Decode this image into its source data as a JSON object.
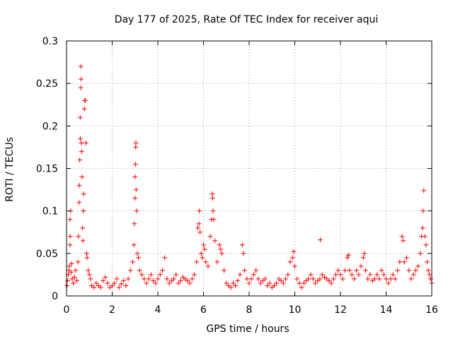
{
  "chart_data": {
    "type": "scatter",
    "title": "Day 177 of 2025, Rate Of TEC Index for receiver aqui",
    "xlabel": "GPS time / hours",
    "ylabel": "ROTI / TECUs",
    "xlim": [
      0,
      16
    ],
    "ylim": [
      0,
      0.3
    ],
    "xticks": [
      0,
      2,
      4,
      6,
      8,
      10,
      12,
      14,
      16
    ],
    "yticks": [
      0,
      0.05,
      0.1,
      0.15,
      0.2,
      0.25,
      0.3
    ],
    "xtick_labels": [
      "0",
      "2",
      "4",
      "6",
      "8",
      "10",
      "12",
      "14",
      "16"
    ],
    "ytick_labels": [
      "0",
      "0.05",
      "0.1",
      "0.15",
      "0.2",
      "0.25",
      "0.3"
    ],
    "grid": true,
    "marker": "plus",
    "color": "#ff0000",
    "series": [
      {
        "name": "ROTI",
        "points": [
          [
            0.02,
            0.012
          ],
          [
            0.05,
            0.018
          ],
          [
            0.08,
            0.025
          ],
          [
            0.1,
            0.03
          ],
          [
            0.12,
            0.035
          ],
          [
            0.15,
            0.06
          ],
          [
            0.15,
            0.09
          ],
          [
            0.16,
            0.07
          ],
          [
            0.18,
            0.1
          ],
          [
            0.2,
            0.028
          ],
          [
            0.22,
            0.038
          ],
          [
            0.25,
            0.02
          ],
          [
            0.3,
            0.015
          ],
          [
            0.35,
            0.022
          ],
          [
            0.4,
            0.03
          ],
          [
            0.45,
            0.018
          ],
          [
            0.5,
            0.04
          ],
          [
            0.52,
            0.07
          ],
          [
            0.55,
            0.11
          ],
          [
            0.56,
            0.13
          ],
          [
            0.58,
            0.16
          ],
          [
            0.6,
            0.185
          ],
          [
            0.6,
            0.21
          ],
          [
            0.62,
            0.245
          ],
          [
            0.63,
            0.27
          ],
          [
            0.64,
            0.255
          ],
          [
            0.65,
            0.18
          ],
          [
            0.66,
            0.17
          ],
          [
            0.68,
            0.14
          ],
          [
            0.7,
            0.08
          ],
          [
            0.72,
            0.065
          ],
          [
            0.74,
            0.1
          ],
          [
            0.75,
            0.12
          ],
          [
            0.78,
            0.22
          ],
          [
            0.8,
            0.23
          ],
          [
            0.82,
            0.23
          ],
          [
            0.85,
            0.18
          ],
          [
            0.88,
            0.05
          ],
          [
            0.9,
            0.045
          ],
          [
            0.95,
            0.03
          ],
          [
            1.0,
            0.025
          ],
          [
            1.05,
            0.02
          ],
          [
            1.1,
            0.012
          ],
          [
            1.2,
            0.01
          ],
          [
            1.3,
            0.015
          ],
          [
            1.4,
            0.012
          ],
          [
            1.5,
            0.01
          ],
          [
            1.6,
            0.018
          ],
          [
            1.7,
            0.022
          ],
          [
            1.8,
            0.015
          ],
          [
            1.9,
            0.01
          ],
          [
            2.0,
            0.012
          ],
          [
            2.1,
            0.015
          ],
          [
            2.2,
            0.02
          ],
          [
            2.3,
            0.01
          ],
          [
            2.4,
            0.014
          ],
          [
            2.5,
            0.018
          ],
          [
            2.6,
            0.012
          ],
          [
            2.7,
            0.02
          ],
          [
            2.8,
            0.03
          ],
          [
            2.9,
            0.04
          ],
          [
            2.95,
            0.06
          ],
          [
            2.97,
            0.085
          ],
          [
            3.0,
            0.115
          ],
          [
            3.0,
            0.14
          ],
          [
            3.02,
            0.155
          ],
          [
            3.03,
            0.175
          ],
          [
            3.04,
            0.18
          ],
          [
            3.05,
            0.125
          ],
          [
            3.07,
            0.1
          ],
          [
            3.1,
            0.05
          ],
          [
            3.15,
            0.045
          ],
          [
            3.2,
            0.03
          ],
          [
            3.3,
            0.025
          ],
          [
            3.4,
            0.02
          ],
          [
            3.5,
            0.015
          ],
          [
            3.6,
            0.02
          ],
          [
            3.7,
            0.025
          ],
          [
            3.8,
            0.018
          ],
          [
            3.9,
            0.015
          ],
          [
            4.0,
            0.02
          ],
          [
            4.1,
            0.025
          ],
          [
            4.2,
            0.03
          ],
          [
            4.3,
            0.045
          ],
          [
            4.4,
            0.02
          ],
          [
            4.5,
            0.015
          ],
          [
            4.6,
            0.018
          ],
          [
            4.7,
            0.02
          ],
          [
            4.8,
            0.025
          ],
          [
            4.9,
            0.015
          ],
          [
            5.0,
            0.018
          ],
          [
            5.1,
            0.022
          ],
          [
            5.2,
            0.02
          ],
          [
            5.3,
            0.018
          ],
          [
            5.4,
            0.015
          ],
          [
            5.5,
            0.02
          ],
          [
            5.6,
            0.025
          ],
          [
            5.7,
            0.04
          ],
          [
            5.75,
            0.08
          ],
          [
            5.8,
            0.085
          ],
          [
            5.82,
            0.1
          ],
          [
            5.85,
            0.075
          ],
          [
            5.9,
            0.05
          ],
          [
            5.95,
            0.045
          ],
          [
            6.0,
            0.06
          ],
          [
            6.05,
            0.055
          ],
          [
            6.1,
            0.04
          ],
          [
            6.2,
            0.035
          ],
          [
            6.3,
            0.07
          ],
          [
            6.35,
            0.09
          ],
          [
            6.38,
            0.12
          ],
          [
            6.4,
            0.115
          ],
          [
            6.42,
            0.1
          ],
          [
            6.45,
            0.09
          ],
          [
            6.5,
            0.065
          ],
          [
            6.6,
            0.04
          ],
          [
            6.7,
            0.06
          ],
          [
            6.75,
            0.055
          ],
          [
            6.8,
            0.05
          ],
          [
            6.9,
            0.03
          ],
          [
            7.0,
            0.015
          ],
          [
            7.1,
            0.012
          ],
          [
            7.2,
            0.01
          ],
          [
            7.3,
            0.015
          ],
          [
            7.4,
            0.012
          ],
          [
            7.5,
            0.018
          ],
          [
            7.6,
            0.025
          ],
          [
            7.7,
            0.06
          ],
          [
            7.75,
            0.05
          ],
          [
            7.8,
            0.03
          ],
          [
            7.9,
            0.02
          ],
          [
            8.0,
            0.015
          ],
          [
            8.1,
            0.02
          ],
          [
            8.2,
            0.025
          ],
          [
            8.3,
            0.03
          ],
          [
            8.4,
            0.02
          ],
          [
            8.5,
            0.015
          ],
          [
            8.6,
            0.018
          ],
          [
            8.7,
            0.02
          ],
          [
            8.8,
            0.012
          ],
          [
            8.9,
            0.015
          ],
          [
            9.0,
            0.01
          ],
          [
            9.1,
            0.012
          ],
          [
            9.2,
            0.015
          ],
          [
            9.3,
            0.02
          ],
          [
            9.4,
            0.018
          ],
          [
            9.5,
            0.015
          ],
          [
            9.6,
            0.02
          ],
          [
            9.7,
            0.025
          ],
          [
            9.8,
            0.04
          ],
          [
            9.9,
            0.045
          ],
          [
            9.95,
            0.052
          ],
          [
            10.0,
            0.035
          ],
          [
            10.1,
            0.02
          ],
          [
            10.2,
            0.015
          ],
          [
            10.3,
            0.01
          ],
          [
            10.4,
            0.015
          ],
          [
            10.5,
            0.018
          ],
          [
            10.6,
            0.02
          ],
          [
            10.7,
            0.025
          ],
          [
            10.8,
            0.02
          ],
          [
            10.9,
            0.015
          ],
          [
            11.0,
            0.018
          ],
          [
            11.1,
            0.02
          ],
          [
            11.12,
            0.066
          ],
          [
            11.2,
            0.025
          ],
          [
            11.3,
            0.022
          ],
          [
            11.4,
            0.02
          ],
          [
            11.5,
            0.018
          ],
          [
            11.6,
            0.015
          ],
          [
            11.7,
            0.02
          ],
          [
            11.8,
            0.025
          ],
          [
            11.9,
            0.03
          ],
          [
            12.0,
            0.025
          ],
          [
            12.1,
            0.02
          ],
          [
            12.2,
            0.03
          ],
          [
            12.3,
            0.045
          ],
          [
            12.35,
            0.048
          ],
          [
            12.4,
            0.03
          ],
          [
            12.5,
            0.025
          ],
          [
            12.6,
            0.02
          ],
          [
            12.7,
            0.03
          ],
          [
            12.8,
            0.025
          ],
          [
            12.9,
            0.035
          ],
          [
            13.0,
            0.045
          ],
          [
            13.05,
            0.05
          ],
          [
            13.1,
            0.03
          ],
          [
            13.2,
            0.02
          ],
          [
            13.3,
            0.025
          ],
          [
            13.4,
            0.018
          ],
          [
            13.5,
            0.02
          ],
          [
            13.6,
            0.025
          ],
          [
            13.7,
            0.02
          ],
          [
            13.8,
            0.03
          ],
          [
            13.9,
            0.025
          ],
          [
            14.0,
            0.02
          ],
          [
            14.1,
            0.015
          ],
          [
            14.2,
            0.02
          ],
          [
            14.3,
            0.025
          ],
          [
            14.4,
            0.02
          ],
          [
            14.5,
            0.03
          ],
          [
            14.6,
            0.04
          ],
          [
            14.7,
            0.07
          ],
          [
            14.75,
            0.065
          ],
          [
            14.8,
            0.04
          ],
          [
            14.9,
            0.045
          ],
          [
            15.0,
            0.03
          ],
          [
            15.1,
            0.02
          ],
          [
            15.2,
            0.025
          ],
          [
            15.3,
            0.03
          ],
          [
            15.4,
            0.035
          ],
          [
            15.5,
            0.05
          ],
          [
            15.55,
            0.07
          ],
          [
            15.6,
            0.08
          ],
          [
            15.62,
            0.1
          ],
          [
            15.65,
            0.124
          ],
          [
            15.7,
            0.07
          ],
          [
            15.75,
            0.06
          ],
          [
            15.8,
            0.04
          ],
          [
            15.85,
            0.03
          ],
          [
            15.9,
            0.025
          ],
          [
            15.95,
            0.02
          ],
          [
            16.0,
            0.015
          ]
        ]
      }
    ]
  }
}
